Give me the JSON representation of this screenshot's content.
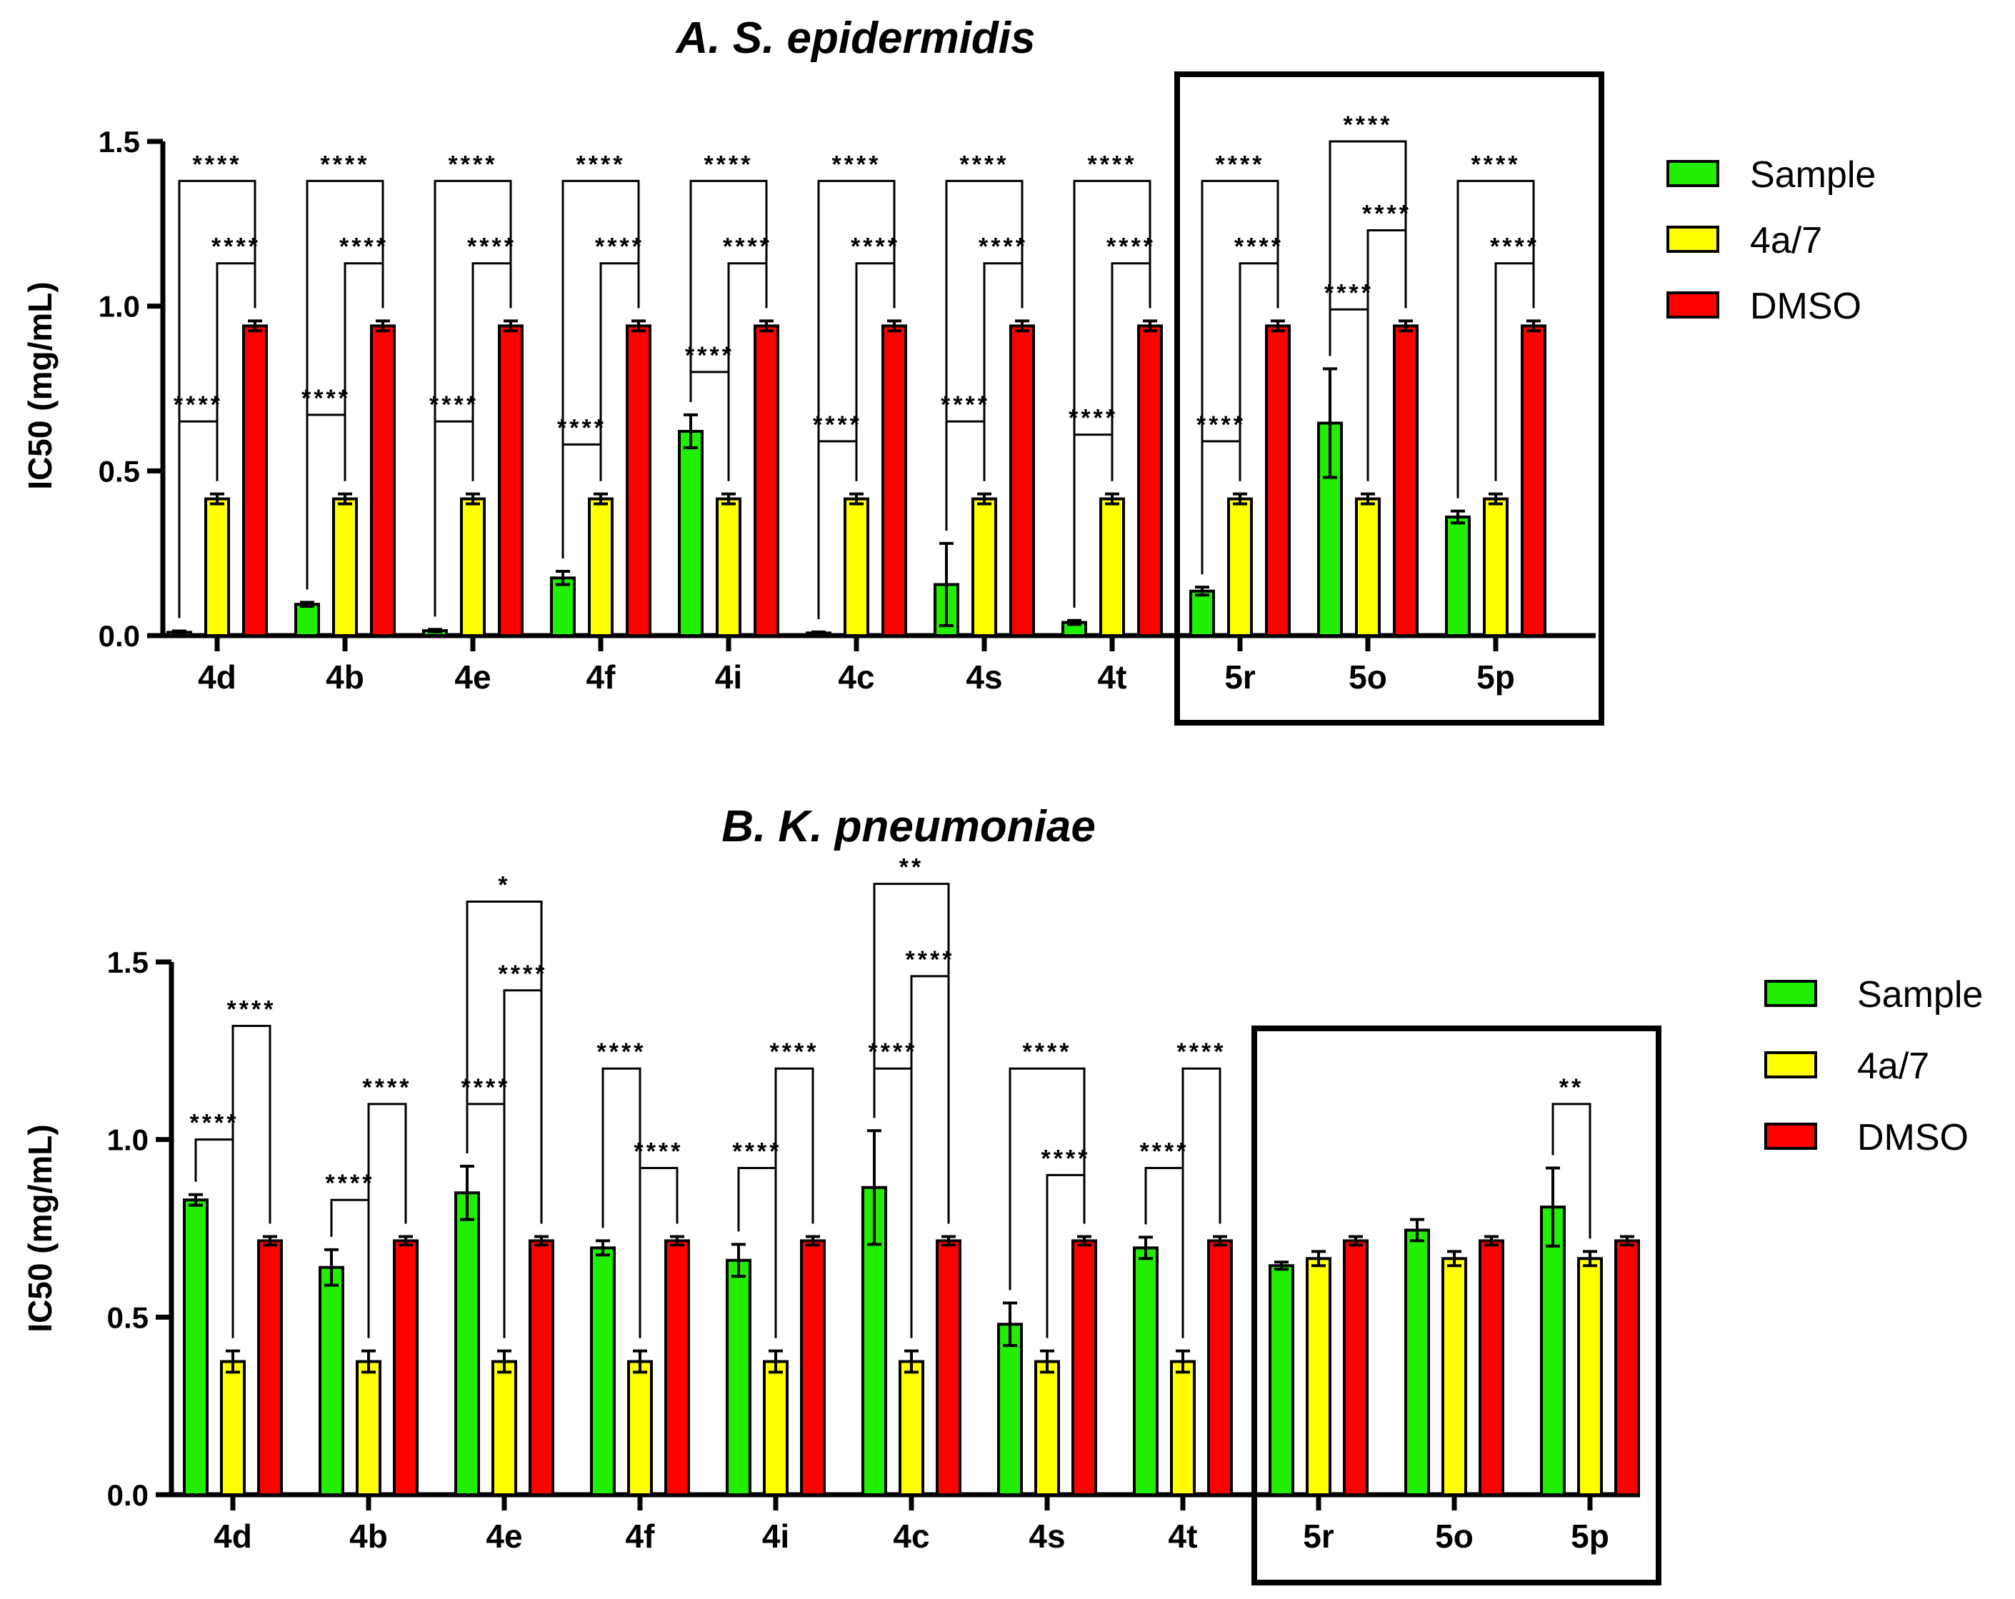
{
  "legend": {
    "sample": "Sample",
    "ref": "4a/7",
    "dmso": "DMSO"
  },
  "colors": {
    "sample": "#22ee00",
    "ref": "#ffff00",
    "dmso": "#ff0000"
  },
  "chart_data": [
    {
      "type": "bar",
      "title": "A. S. epidermidis",
      "ylabel": "IC50 (mg/mL)",
      "xlabel": "",
      "ylim": [
        0,
        1.5
      ],
      "yticks": [
        "0.0",
        "0.5",
        "1.0",
        "1.5"
      ],
      "categories": [
        "4d",
        "4b",
        "4e",
        "4f",
        "4i",
        "4c",
        "4s",
        "4t",
        "5r",
        "5o",
        "5p"
      ],
      "series": [
        {
          "name": "Sample",
          "values": [
            0.01,
            0.095,
            0.015,
            0.175,
            0.62,
            0.008,
            0.155,
            0.04,
            0.135,
            0.645,
            0.36
          ],
          "errors": [
            0.004,
            0.006,
            0.004,
            0.02,
            0.05,
            0.003,
            0.125,
            0.006,
            0.012,
            0.165,
            0.018
          ]
        },
        {
          "name": "4a/7",
          "values": [
            0.415,
            0.415,
            0.415,
            0.415,
            0.415,
            0.415,
            0.415,
            0.415,
            0.415,
            0.415,
            0.415
          ],
          "errors": [
            0.015,
            0.015,
            0.015,
            0.015,
            0.015,
            0.015,
            0.015,
            0.015,
            0.015,
            0.015,
            0.015
          ]
        },
        {
          "name": "DMSO",
          "values": [
            0.94,
            0.94,
            0.94,
            0.94,
            0.94,
            0.94,
            0.94,
            0.94,
            0.94,
            0.94,
            0.94
          ],
          "errors": [
            0.015,
            0.015,
            0.015,
            0.015,
            0.015,
            0.015,
            0.015,
            0.015,
            0.015,
            0.015,
            0.015
          ]
        }
      ],
      "highlight": [
        "5r",
        "5o",
        "5p"
      ],
      "annotations": [
        {
          "group": 0,
          "from": 0,
          "to": 2,
          "y": 1.38,
          "label": "****"
        },
        {
          "group": 0,
          "from": 1,
          "to": 2,
          "y": 1.13,
          "label": "****"
        },
        {
          "group": 0,
          "from": 0,
          "to": 1,
          "y": 0.65,
          "label": "****"
        },
        {
          "group": 1,
          "from": 0,
          "to": 2,
          "y": 1.38,
          "label": "****"
        },
        {
          "group": 1,
          "from": 1,
          "to": 2,
          "y": 1.13,
          "label": "****"
        },
        {
          "group": 1,
          "from": 0,
          "to": 1,
          "y": 0.67,
          "label": "****"
        },
        {
          "group": 2,
          "from": 0,
          "to": 2,
          "y": 1.38,
          "label": "****"
        },
        {
          "group": 2,
          "from": 1,
          "to": 2,
          "y": 1.13,
          "label": "****"
        },
        {
          "group": 2,
          "from": 0,
          "to": 1,
          "y": 0.65,
          "label": "****"
        },
        {
          "group": 3,
          "from": 0,
          "to": 2,
          "y": 1.38,
          "label": "****"
        },
        {
          "group": 3,
          "from": 1,
          "to": 2,
          "y": 1.13,
          "label": "****"
        },
        {
          "group": 3,
          "from": 0,
          "to": 1,
          "y": 0.58,
          "label": "****"
        },
        {
          "group": 4,
          "from": 0,
          "to": 2,
          "y": 1.38,
          "label": "****"
        },
        {
          "group": 4,
          "from": 1,
          "to": 2,
          "y": 1.13,
          "label": "****"
        },
        {
          "group": 4,
          "from": 0,
          "to": 1,
          "y": 0.8,
          "label": "****"
        },
        {
          "group": 5,
          "from": 0,
          "to": 2,
          "y": 1.38,
          "label": "****"
        },
        {
          "group": 5,
          "from": 1,
          "to": 2,
          "y": 1.13,
          "label": "****"
        },
        {
          "group": 5,
          "from": 0,
          "to": 1,
          "y": 0.59,
          "label": "****"
        },
        {
          "group": 6,
          "from": 0,
          "to": 2,
          "y": 1.38,
          "label": "****"
        },
        {
          "group": 6,
          "from": 1,
          "to": 2,
          "y": 1.13,
          "label": "****"
        },
        {
          "group": 6,
          "from": 0,
          "to": 1,
          "y": 0.65,
          "label": "****"
        },
        {
          "group": 7,
          "from": 0,
          "to": 2,
          "y": 1.38,
          "label": "****"
        },
        {
          "group": 7,
          "from": 1,
          "to": 2,
          "y": 1.13,
          "label": "****"
        },
        {
          "group": 7,
          "from": 0,
          "to": 1,
          "y": 0.61,
          "label": "****"
        },
        {
          "group": 8,
          "from": 0,
          "to": 2,
          "y": 1.38,
          "label": "****"
        },
        {
          "group": 8,
          "from": 1,
          "to": 2,
          "y": 1.13,
          "label": "****"
        },
        {
          "group": 8,
          "from": 0,
          "to": 1,
          "y": 0.59,
          "label": "****"
        },
        {
          "group": 9,
          "from": 0,
          "to": 2,
          "y": 1.5,
          "label": "****"
        },
        {
          "group": 9,
          "from": 1,
          "to": 2,
          "y": 1.23,
          "label": "****"
        },
        {
          "group": 9,
          "from": 0,
          "to": 1,
          "y": 0.99,
          "label": "****"
        },
        {
          "group": 10,
          "from": 0,
          "to": 2,
          "y": 1.38,
          "label": "****"
        },
        {
          "group": 10,
          "from": 1,
          "to": 2,
          "y": 1.13,
          "label": "****"
        }
      ]
    },
    {
      "type": "bar",
      "title": "B. K. pneumoniae",
      "ylabel": "IC50 (mg/mL)",
      "xlabel": "",
      "ylim": [
        0,
        1.5
      ],
      "yticks": [
        "0.0",
        "0.5",
        "1.0",
        "1.5"
      ],
      "categories": [
        "4d",
        "4b",
        "4e",
        "4f",
        "4i",
        "4c",
        "4s",
        "4t",
        "5r",
        "5o",
        "5p"
      ],
      "series": [
        {
          "name": "Sample",
          "values": [
            0.83,
            0.64,
            0.85,
            0.695,
            0.66,
            0.865,
            0.48,
            0.695,
            0.645,
            0.745,
            0.81
          ],
          "errors": [
            0.015,
            0.05,
            0.075,
            0.02,
            0.045,
            0.16,
            0.06,
            0.03,
            0.01,
            0.03,
            0.11
          ]
        },
        {
          "name": "4a/7",
          "values": [
            0.375,
            0.375,
            0.375,
            0.375,
            0.375,
            0.375,
            0.375,
            0.375,
            0.665,
            0.665,
            0.665
          ],
          "errors": [
            0.03,
            0.03,
            0.03,
            0.03,
            0.03,
            0.03,
            0.03,
            0.03,
            0.02,
            0.02,
            0.02
          ]
        },
        {
          "name": "DMSO",
          "values": [
            0.715,
            0.715,
            0.715,
            0.715,
            0.715,
            0.715,
            0.715,
            0.715,
            0.715,
            0.715,
            0.715
          ],
          "errors": [
            0.012,
            0.012,
            0.012,
            0.012,
            0.012,
            0.012,
            0.012,
            0.012,
            0.012,
            0.012,
            0.012
          ]
        }
      ],
      "highlight": [
        "5r",
        "5o",
        "5p"
      ],
      "annotations": [
        {
          "group": 0,
          "from": 0,
          "to": 1,
          "y": 1.0,
          "label": "****"
        },
        {
          "group": 0,
          "from": 1,
          "to": 2,
          "y": 1.32,
          "label": "****"
        },
        {
          "group": 1,
          "from": 0,
          "to": 1,
          "y": 0.83,
          "label": "****"
        },
        {
          "group": 1,
          "from": 1,
          "to": 2,
          "y": 1.1,
          "label": "****"
        },
        {
          "group": 2,
          "from": 0,
          "to": 1,
          "y": 1.1,
          "label": "****"
        },
        {
          "group": 2,
          "from": 1,
          "to": 2,
          "y": 1.42,
          "label": "****"
        },
        {
          "group": 2,
          "from": 0,
          "to": 2,
          "y": 1.67,
          "label": "*"
        },
        {
          "group": 3,
          "from": 0,
          "to": 1,
          "y": 1.2,
          "label": "****"
        },
        {
          "group": 3,
          "from": 1,
          "to": 2,
          "y": 0.92,
          "label": "****"
        },
        {
          "group": 4,
          "from": 0,
          "to": 1,
          "y": 0.92,
          "label": "****"
        },
        {
          "group": 4,
          "from": 1,
          "to": 2,
          "y": 1.2,
          "label": "****"
        },
        {
          "group": 5,
          "from": 0,
          "to": 1,
          "y": 1.2,
          "label": "****"
        },
        {
          "group": 5,
          "from": 1,
          "to": 2,
          "y": 1.46,
          "label": "****"
        },
        {
          "group": 5,
          "from": 0,
          "to": 2,
          "y": 1.72,
          "label": "**"
        },
        {
          "group": 6,
          "from": 0,
          "to": 2,
          "y": 1.2,
          "label": "****"
        },
        {
          "group": 6,
          "from": 1,
          "to": 2,
          "y": 0.9,
          "label": "****"
        },
        {
          "group": 7,
          "from": 0,
          "to": 1,
          "y": 0.92,
          "label": "****"
        },
        {
          "group": 7,
          "from": 1,
          "to": 2,
          "y": 1.2,
          "label": "****"
        },
        {
          "group": 10,
          "from": 0,
          "to": 1,
          "y": 1.1,
          "label": "**"
        }
      ]
    }
  ]
}
